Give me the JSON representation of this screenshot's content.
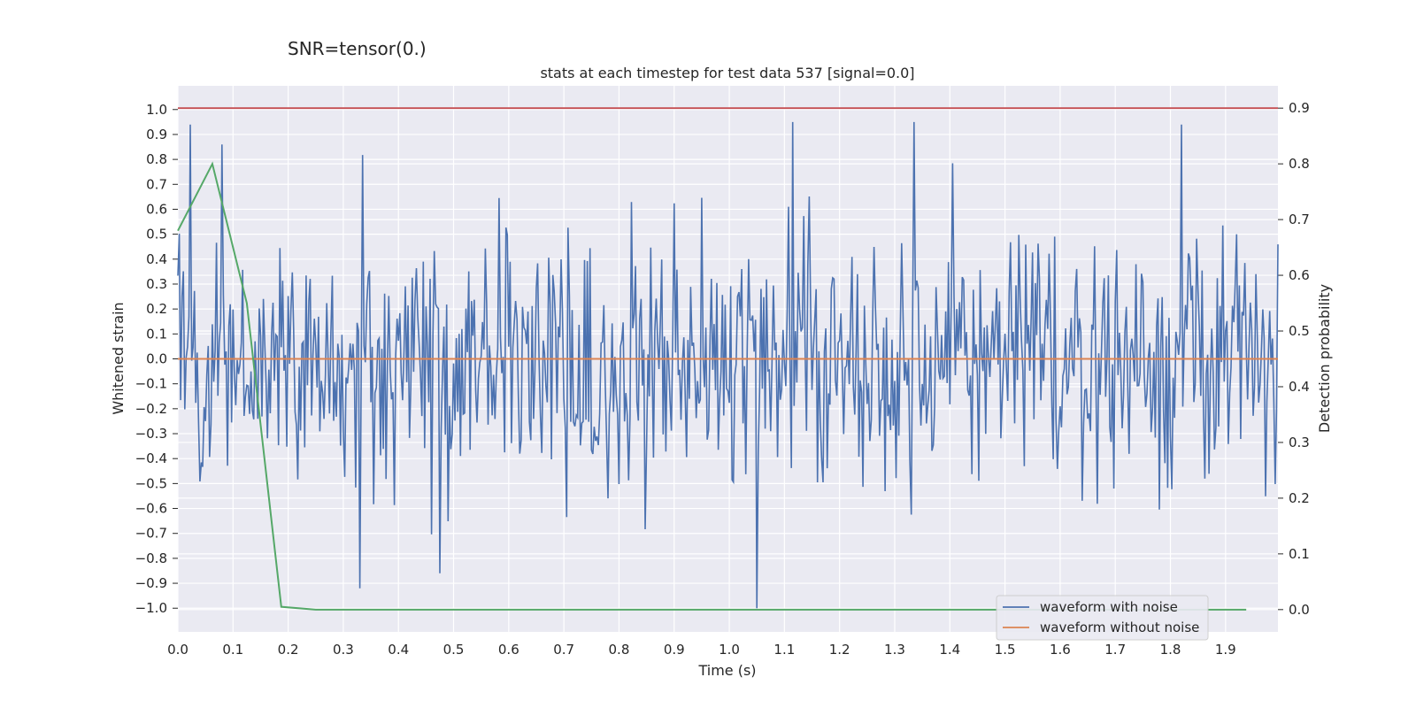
{
  "suptitle": "SNR=tensor(0.)",
  "chart_data": {
    "type": "line",
    "title": "stats at each timestep for test data 537 [signal=0.0]",
    "xlabel": "Time (s)",
    "ylabel": "Whitened strain",
    "y2label": "Detection probability",
    "xlim": [
      0.0,
      1.995
    ],
    "ylim": [
      -1.095,
      1.095
    ],
    "y2lim": [
      -0.04,
      0.94
    ],
    "grid": true,
    "x_ticks": [
      "0.0",
      "0.1",
      "0.2",
      "0.3",
      "0.4",
      "0.5",
      "0.6",
      "0.7",
      "0.8",
      "0.9",
      "1.0",
      "1.1",
      "1.2",
      "1.3",
      "1.4",
      "1.5",
      "1.6",
      "1.7",
      "1.8",
      "1.9"
    ],
    "y_ticks": [
      "1.0",
      "0.9",
      "0.8",
      "0.7",
      "0.6",
      "0.5",
      "0.4",
      "0.3",
      "0.2",
      "0.1",
      "0.0",
      "-0.1",
      "-0.2",
      "-0.3",
      "-0.4",
      "-0.5",
      "-0.6",
      "-0.7",
      "-0.8",
      "-0.9",
      "-1.0"
    ],
    "y2_ticks": [
      "0.9",
      "0.8",
      "0.7",
      "0.6",
      "0.5",
      "0.4",
      "0.3",
      "0.2",
      "0.1",
      "0.0"
    ],
    "legend_position": "lower-right",
    "series": [
      {
        "name": "waveform with noise",
        "color": "#4c72b0",
        "axis": "left",
        "sample_interval": 0.0025,
        "noise_std": 0.25,
        "seed": 537,
        "range": [
          -1.0,
          0.95
        ],
        "notable_peaks": [
          {
            "x": 0.022,
            "y": 0.94
          },
          {
            "x": 0.08,
            "y": 0.86
          },
          {
            "x": 0.33,
            "y": -0.92
          },
          {
            "x": 0.475,
            "y": -0.86
          },
          {
            "x": 1.05,
            "y": -1.0
          },
          {
            "x": 1.115,
            "y": 0.95
          },
          {
            "x": 1.335,
            "y": 0.95
          },
          {
            "x": 1.82,
            "y": 0.94
          }
        ]
      },
      {
        "name": "waveform without noise",
        "color": "#dd8452",
        "axis": "left",
        "x": [
          0.0,
          1.995
        ],
        "y": [
          0.0,
          0.0
        ]
      },
      {
        "name": "detection probability",
        "color": "#55a868",
        "axis": "right",
        "x": [
          0.0,
          0.0625,
          0.125,
          0.1875,
          0.25,
          0.3125,
          0.5,
          1.0,
          1.5,
          1.9375
        ],
        "y": [
          0.68,
          0.8,
          0.55,
          0.005,
          0.0,
          0.0,
          0.0,
          0.0,
          0.0,
          0.0
        ]
      }
    ],
    "threshold": {
      "axis": "right",
      "value": 0.9,
      "color": "#c44e52"
    }
  }
}
